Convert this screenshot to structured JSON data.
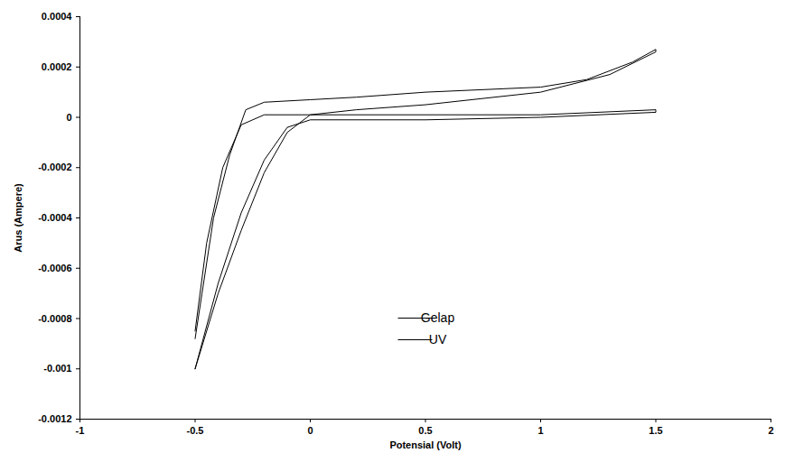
{
  "chart_data": {
    "type": "line",
    "x_label": "Potensial (Volt)",
    "y_label": "Arus (Ampere)",
    "xlim": [
      -1,
      2
    ],
    "xticks": [
      -1,
      -0.5,
      0,
      0.5,
      1,
      1.5,
      2
    ],
    "ylim": [
      -0.0012,
      0.0004
    ],
    "yticks": [
      -0.0012,
      -0.001,
      -0.0008,
      -0.0006,
      -0.0004,
      -0.0002,
      0,
      0.0002,
      0.0004
    ],
    "grid": false,
    "legend": "center",
    "series": [
      {
        "name": "Gelap",
        "color": "#000000",
        "x": [
          -0.5,
          -0.4,
          -0.3,
          -0.2,
          -0.1,
          0,
          0.5,
          1.0,
          1.5,
          1.5,
          1.0,
          0.5,
          0,
          -0.2,
          -0.3,
          -0.38,
          -0.45,
          -0.5
        ],
        "values": [
          -0.001,
          -0.00066,
          -0.00038,
          -0.00017,
          -4e-05,
          -1e-05,
          -1e-05,
          0,
          2e-05,
          3e-05,
          1e-05,
          1e-05,
          1e-05,
          1e-05,
          -3e-05,
          -0.0002,
          -0.0005,
          -0.00085
        ]
      },
      {
        "name": "UV",
        "color": "#000000",
        "x": [
          -0.5,
          -0.4,
          -0.3,
          -0.2,
          -0.1,
          0,
          0.2,
          0.5,
          1.0,
          1.3,
          1.5,
          1.5,
          1.4,
          1.2,
          1.0,
          0.5,
          0.2,
          0,
          -0.2,
          -0.28,
          -0.35,
          -0.42,
          -0.47,
          -0.5
        ],
        "values": [
          -0.001,
          -0.0007,
          -0.00045,
          -0.00022,
          -6e-05,
          1e-05,
          3e-05,
          5e-05,
          0.0001,
          0.00017,
          0.00026,
          0.00027,
          0.00022,
          0.00015,
          0.00012,
          0.0001,
          8e-05,
          7e-05,
          6e-05,
          3e-05,
          -0.00015,
          -0.0004,
          -0.0007,
          -0.00088
        ]
      }
    ]
  }
}
